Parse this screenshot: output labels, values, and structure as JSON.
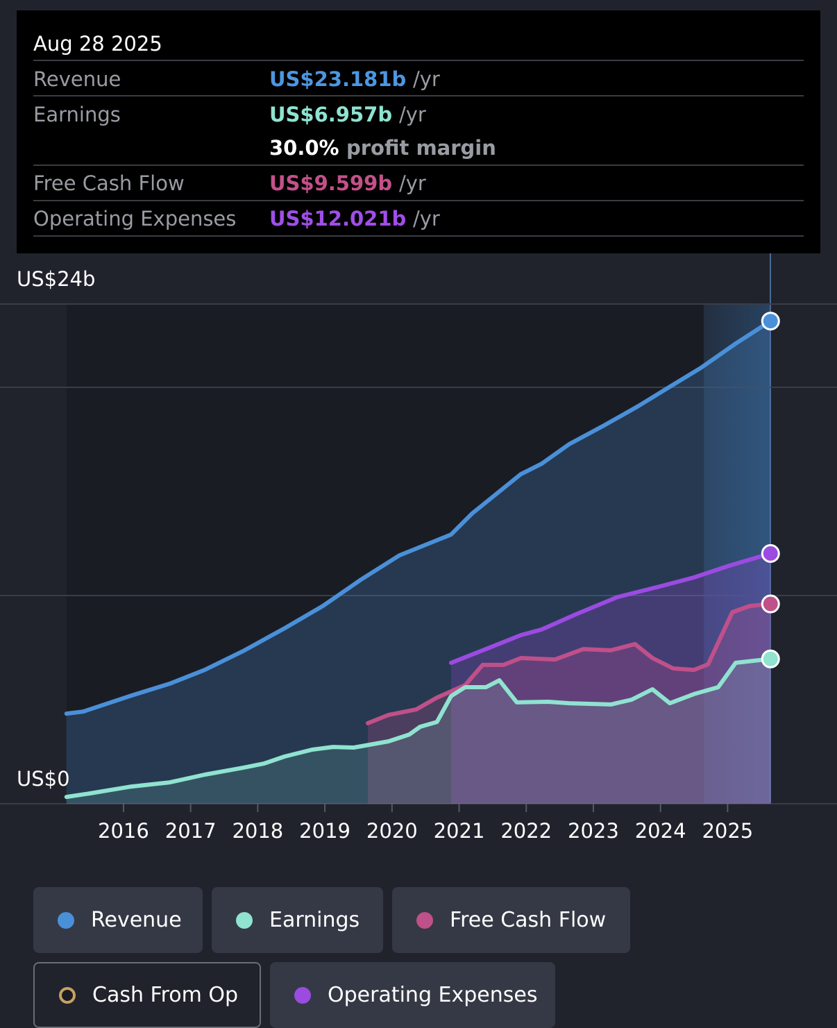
{
  "tooltip": {
    "date": "Aug 28 2025",
    "rows": [
      {
        "label": "Revenue",
        "value": "US$23.181b",
        "unit": "/yr",
        "color": "#4d96e0"
      },
      {
        "label": "Earnings",
        "value": "US$6.957b",
        "unit": "/yr",
        "color": "#8fe3d0"
      },
      {
        "label": "Free Cash Flow",
        "value": "US$9.599b",
        "unit": "/yr",
        "color": "#c4508a"
      },
      {
        "label": "Operating Expenses",
        "value": "US$12.021b",
        "unit": "/yr",
        "color": "#a04ee8"
      }
    ],
    "margin": {
      "value": "30.0%",
      "label": "profit margin"
    }
  },
  "chart_data": {
    "type": "line",
    "area": true,
    "xlim": [
      2014.16,
      2026.63
    ],
    "xticks": [
      2016,
      2017,
      2018,
      2019,
      2020,
      2021,
      2022,
      2023,
      2024,
      2025
    ],
    "ylim": [
      0,
      24
    ],
    "yticks": [
      {
        "value": 0,
        "label": "US$0"
      },
      {
        "value": 10,
        "label": null
      },
      {
        "value": 20,
        "label": null
      },
      {
        "value": 24,
        "label": "US$24b"
      }
    ],
    "grid": true,
    "series": [
      {
        "name": "Revenue",
        "color": "#4a90d9",
        "x": [
          2015.15,
          2015.4,
          2016.12,
          2016.69,
          2017.21,
          2017.78,
          2018.4,
          2018.97,
          2019.54,
          2020.11,
          2020.88,
          2021.19,
          2021.92,
          2022.23,
          2022.64,
          2023.16,
          2023.67,
          2024.09,
          2024.6,
          2025.12,
          2025.64
        ],
        "values": [
          4.33,
          4.43,
          5.2,
          5.77,
          6.43,
          7.33,
          8.43,
          9.5,
          10.77,
          11.93,
          12.93,
          13.93,
          15.83,
          16.33,
          17.27,
          18.17,
          19.1,
          19.93,
          20.93,
          22.1,
          23.181
        ]
      },
      {
        "name": "Earnings",
        "color": "#8fe3d0",
        "x": [
          2015.15,
          2015.5,
          2016.12,
          2016.69,
          2017.21,
          2017.78,
          2018.09,
          2018.4,
          2018.81,
          2019.12,
          2019.43,
          2019.95,
          2020.26,
          2020.42,
          2020.67,
          2020.88,
          2021.09,
          2021.4,
          2021.6,
          2021.86,
          2022.33,
          2022.64,
          2023.26,
          2023.57,
          2023.88,
          2024.14,
          2024.5,
          2024.86,
          2025.12,
          2025.64
        ],
        "values": [
          0.33,
          0.5,
          0.83,
          1.03,
          1.4,
          1.73,
          1.93,
          2.27,
          2.6,
          2.73,
          2.7,
          3.0,
          3.33,
          3.7,
          3.93,
          5.17,
          5.6,
          5.6,
          5.93,
          4.87,
          4.9,
          4.83,
          4.77,
          5.0,
          5.5,
          4.83,
          5.27,
          5.6,
          6.77,
          6.957
        ]
      },
      {
        "name": "Free Cash Flow",
        "color": "#c0508a",
        "x": [
          2019.64,
          2019.95,
          2020.36,
          2020.67,
          2021.09,
          2021.35,
          2021.66,
          2021.92,
          2022.43,
          2022.85,
          2023.26,
          2023.62,
          2023.88,
          2024.19,
          2024.5,
          2024.71,
          2025.07,
          2025.33,
          2025.64
        ],
        "values": [
          3.87,
          4.27,
          4.53,
          5.1,
          5.7,
          6.67,
          6.67,
          7.0,
          6.93,
          7.43,
          7.37,
          7.67,
          7.0,
          6.5,
          6.43,
          6.7,
          9.2,
          9.5,
          9.599
        ]
      },
      {
        "name": "Operating Expenses",
        "color": "#9b4be0",
        "x": [
          2020.88,
          2021.4,
          2021.92,
          2022.23,
          2022.74,
          2023.36,
          2023.98,
          2024.5,
          2025.02,
          2025.64
        ],
        "values": [
          6.77,
          7.43,
          8.1,
          8.37,
          9.1,
          9.93,
          10.43,
          10.87,
          11.43,
          12.021
        ]
      }
    ],
    "inactive_series": [
      {
        "name": "Cash From Op",
        "color": "#c8a060"
      }
    ]
  }
}
